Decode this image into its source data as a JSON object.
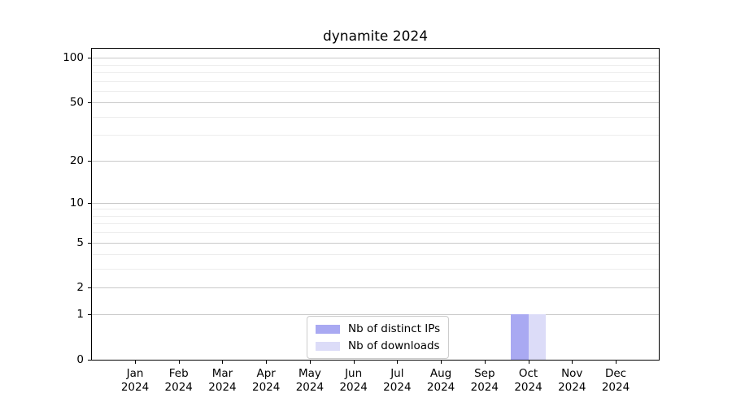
{
  "chart_data": {
    "type": "bar",
    "title": "dynamite 2024",
    "xlabel": "",
    "ylabel": "",
    "grid": "horizontal",
    "legend_position": "lower center inside",
    "categories": [
      {
        "month": "Jan",
        "year": "2024"
      },
      {
        "month": "Feb",
        "year": "2024"
      },
      {
        "month": "Mar",
        "year": "2024"
      },
      {
        "month": "Apr",
        "year": "2024"
      },
      {
        "month": "May",
        "year": "2024"
      },
      {
        "month": "Jun",
        "year": "2024"
      },
      {
        "month": "Jul",
        "year": "2024"
      },
      {
        "month": "Aug",
        "year": "2024"
      },
      {
        "month": "Sep",
        "year": "2024"
      },
      {
        "month": "Oct",
        "year": "2024"
      },
      {
        "month": "Nov",
        "year": "2024"
      },
      {
        "month": "Dec",
        "year": "2024"
      }
    ],
    "series": [
      {
        "name": "Nb of distinct IPs",
        "color": "#a9a9f2",
        "values": [
          0,
          0,
          0,
          0,
          0,
          0,
          0,
          0,
          0,
          1,
          0,
          0
        ]
      },
      {
        "name": "Nb of downloads",
        "color": "#dcdcf8",
        "values": [
          0,
          0,
          0,
          0,
          0,
          0,
          0,
          0,
          0,
          1,
          0,
          0
        ]
      }
    ],
    "yaxis": {
      "scale": "log1p",
      "ylim": [
        0,
        115
      ],
      "ticks": [
        0,
        1,
        2,
        5,
        10,
        20,
        50,
        100
      ],
      "minor_gridlines": [
        3,
        4,
        6,
        7,
        8,
        9,
        30,
        40,
        60,
        70,
        80,
        90
      ]
    }
  }
}
